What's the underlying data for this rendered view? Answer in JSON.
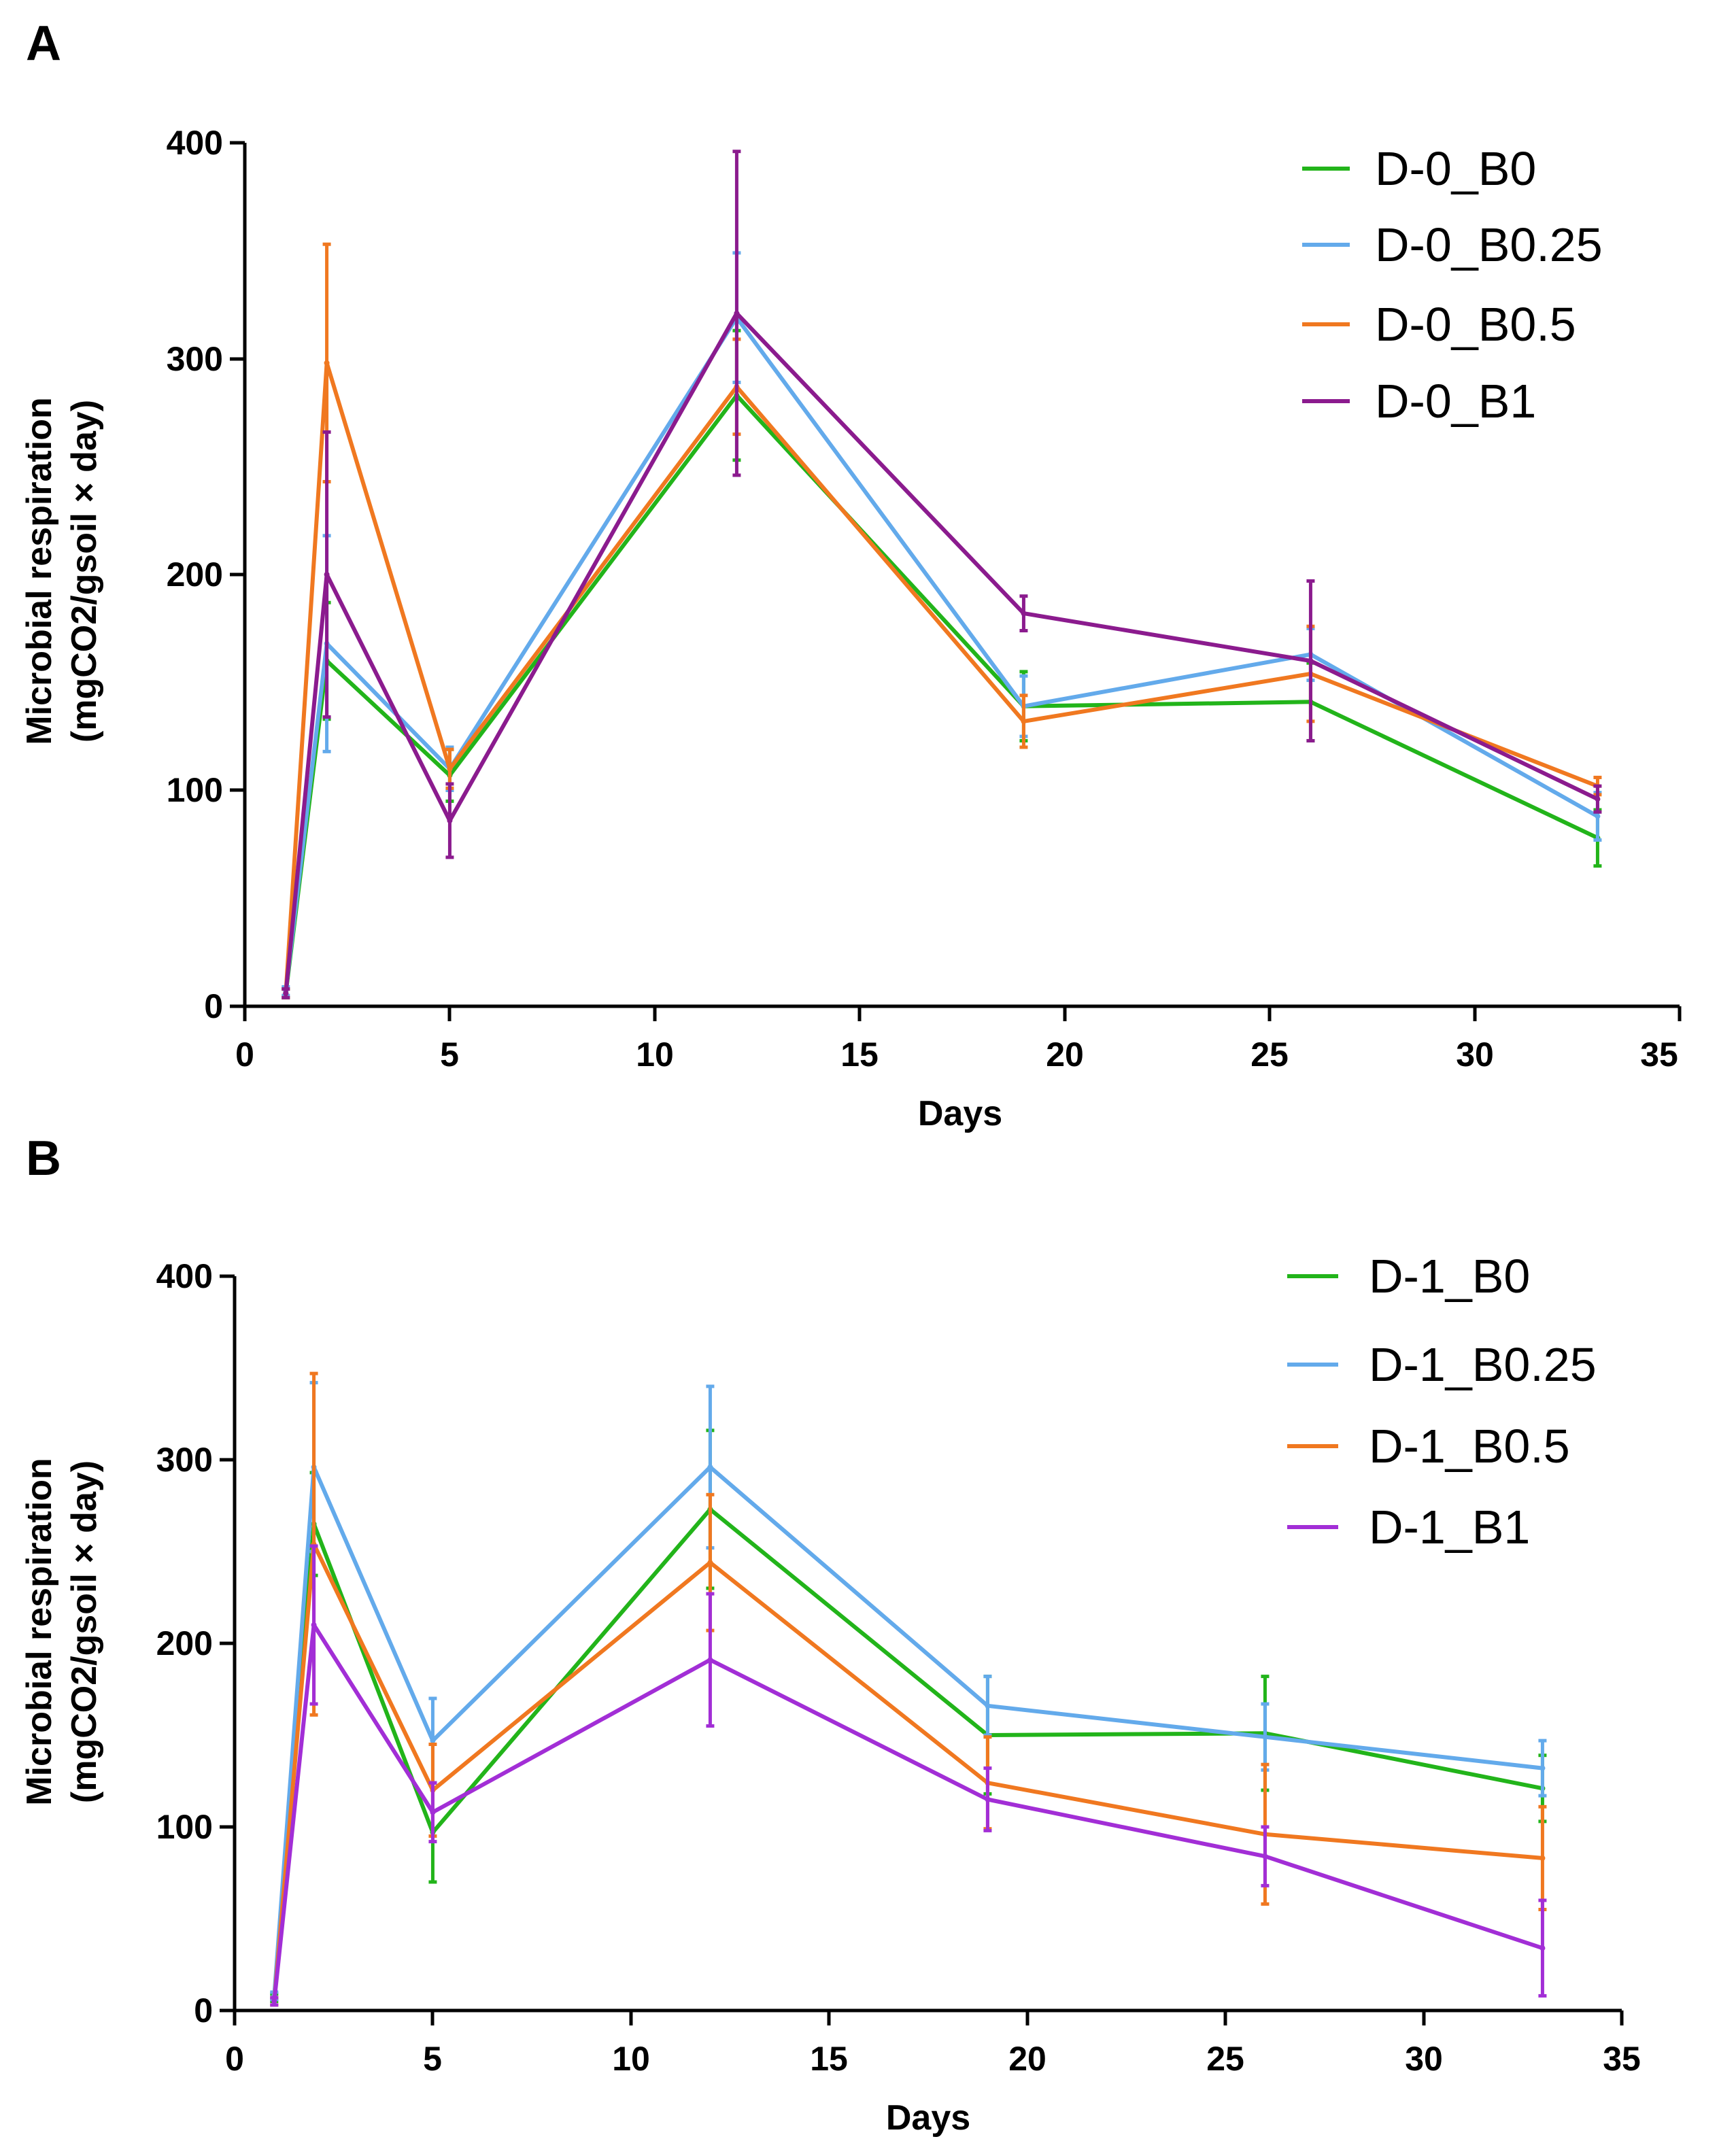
{
  "chart_data": [
    {
      "type": "line",
      "panel_label": "A",
      "title": "",
      "xlabel": "Days",
      "ylabel_line1": "Microbial respiration",
      "ylabel_line2": "(mgCO2/gsoil × day)",
      "xlim": [
        0,
        35
      ],
      "ylim": [
        0,
        400
      ],
      "xticks": [
        0,
        5,
        10,
        15,
        20,
        25,
        30,
        35
      ],
      "yticks": [
        0,
        100,
        200,
        300,
        400
      ],
      "legend_position": "top-right",
      "grid": false,
      "x": [
        1,
        2,
        5,
        12,
        19,
        26,
        33
      ],
      "series": [
        {
          "name": "D-0_B0",
          "color": "#22b41a",
          "values": [
            6,
            160,
            107,
            283,
            139,
            141,
            78
          ],
          "errors": [
            2,
            27,
            12,
            30,
            16,
            18,
            13
          ]
        },
        {
          "name": "D-0_B0.25",
          "color": "#63aaeb",
          "values": [
            7,
            168,
            110,
            319,
            139,
            163,
            88
          ],
          "errors": [
            2,
            50,
            10,
            30,
            14,
            12,
            11
          ]
        },
        {
          "name": "D-0_B0.5",
          "color": "#f07820",
          "values": [
            6,
            298,
            110,
            287,
            132,
            154,
            102
          ],
          "errors": [
            2,
            55,
            9,
            22,
            12,
            22,
            4
          ]
        },
        {
          "name": "D-0_B1",
          "color": "#8b1b8e",
          "values": [
            6,
            200,
            86,
            321,
            182,
            160,
            96
          ],
          "errors": [
            2,
            66,
            17,
            75,
            8,
            37,
            6
          ]
        }
      ]
    },
    {
      "type": "line",
      "panel_label": "B",
      "title": "",
      "xlabel": "Days",
      "ylabel_line1": "Microbial respiration",
      "ylabel_line2": "(mgCO2/gsoil × day)",
      "xlim": [
        0,
        35
      ],
      "ylim": [
        0,
        400
      ],
      "xticks": [
        0,
        5,
        10,
        15,
        20,
        25,
        30,
        35
      ],
      "yticks": [
        0,
        100,
        200,
        300,
        400
      ],
      "legend_position": "top-right",
      "grid": false,
      "x": [
        1,
        2,
        5,
        12,
        19,
        26,
        33
      ],
      "series": [
        {
          "name": "D-1_B0",
          "color": "#22b41a",
          "values": [
            7,
            265,
            97,
            273,
            150,
            151,
            121
          ],
          "errors": [
            2,
            28,
            27,
            43,
            32,
            31,
            18
          ]
        },
        {
          "name": "D-1_B0.25",
          "color": "#63aaeb",
          "values": [
            8,
            296,
            147,
            296,
            166,
            149,
            132
          ],
          "errors": [
            2,
            46,
            23,
            44,
            16,
            18,
            15
          ]
        },
        {
          "name": "D-1_B0.5",
          "color": "#f07820",
          "values": [
            5,
            254,
            120,
            244,
            124,
            96,
            83
          ],
          "errors": [
            2,
            93,
            25,
            37,
            25,
            38,
            28
          ]
        },
        {
          "name": "D-1_B1",
          "color": "#a22ed6",
          "values": [
            5,
            210,
            108,
            191,
            115,
            84,
            34
          ],
          "errors": [
            2,
            43,
            16,
            36,
            17,
            16,
            26
          ]
        }
      ]
    }
  ]
}
